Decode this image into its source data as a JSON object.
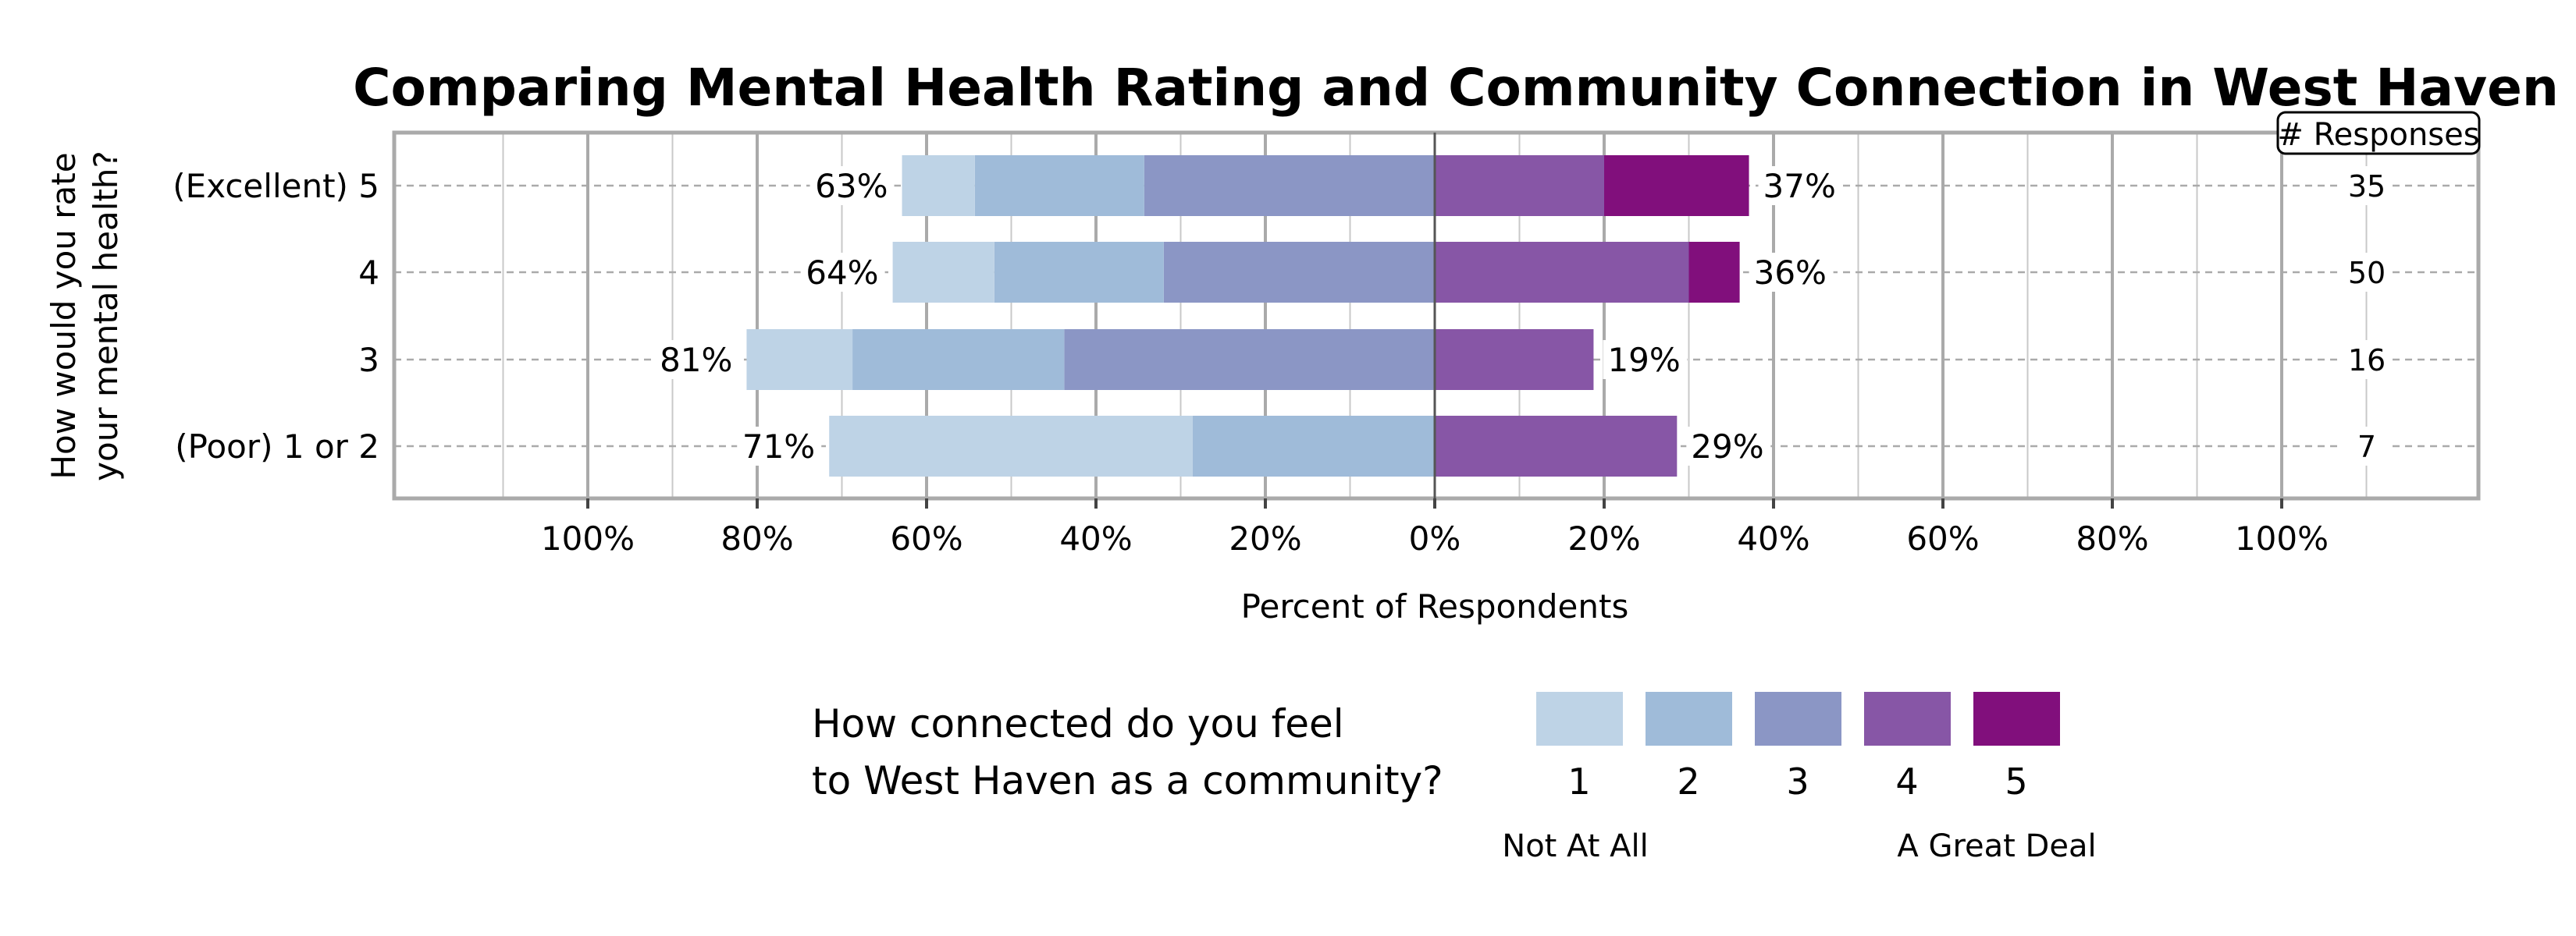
{
  "chart_data": {
    "type": "bar",
    "orientation": "horizontal",
    "stacked": "diverging",
    "title": "Comparing Mental Health Rating and Community Connection in West Haven",
    "xlabel": "Percent of Respondents",
    "ylabel": "How would you rate your mental health?",
    "x_tick_labels": [
      "100%",
      "80%",
      "60%",
      "40%",
      "20%",
      "0%",
      "20%",
      "40%",
      "60%",
      "80%",
      "100%"
    ],
    "xlim": [
      -100,
      100
    ],
    "grid": true,
    "categories": [
      "(Excellent) 5",
      "4",
      "3",
      "(Poor) 1 or 2"
    ],
    "series": [
      {
        "name": "1",
        "color": "#bed3e6",
        "side": "negative",
        "values": [
          8.6,
          12.0,
          12.5,
          42.9
        ]
      },
      {
        "name": "2",
        "color": "#9fbbd9",
        "side": "negative",
        "values": [
          20.0,
          20.0,
          25.0,
          28.6
        ]
      },
      {
        "name": "3",
        "color": "#8b96c5",
        "side": "negative",
        "values": [
          34.3,
          32.0,
          43.75,
          0
        ]
      },
      {
        "name": "4",
        "color": "#8756a6",
        "side": "positive",
        "values": [
          20.0,
          30.0,
          18.75,
          28.6
        ]
      },
      {
        "name": "5",
        "color": "#810f7c",
        "side": "positive",
        "values": [
          17.1,
          6.0,
          0,
          0
        ]
      }
    ],
    "left_totals": [
      "63%",
      "64%",
      "81%",
      "71%"
    ],
    "right_totals": [
      "37%",
      "36%",
      "19%",
      "29%"
    ],
    "responses_header": "# Responses",
    "responses": [
      "35",
      "50",
      "16",
      "7"
    ],
    "legend": {
      "title_lines": [
        "How connected do you feel",
        "to West Haven as a community?"
      ],
      "low_label": "Not At All",
      "high_label": "A Great Deal",
      "placement": "bottom"
    }
  }
}
